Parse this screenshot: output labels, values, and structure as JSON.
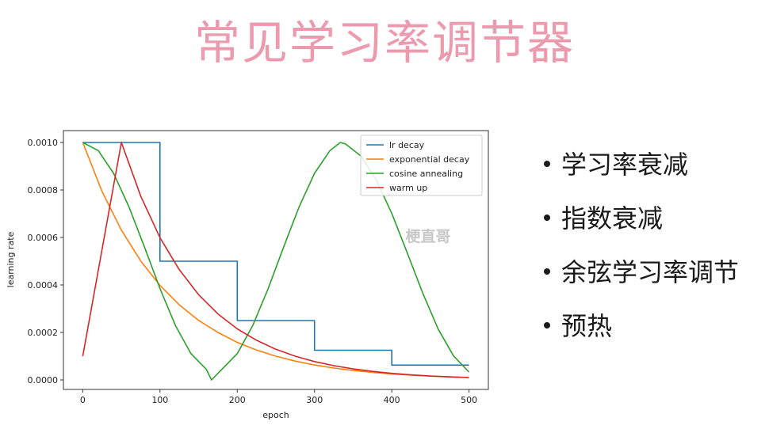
{
  "slide": {
    "title": "常见学习率调节器",
    "bullets": [
      "学习率衰减",
      "指数衰减",
      "余弦学习率调节",
      "预热"
    ]
  },
  "chart_data": {
    "type": "line",
    "xlabel": "epoch",
    "ylabel": "learning rate",
    "xlim": [
      -25,
      525
    ],
    "ylim": [
      -4e-05,
      0.00105
    ],
    "xticks": [
      0,
      100,
      200,
      300,
      400,
      500
    ],
    "xtick_labels": [
      "0",
      "100",
      "200",
      "300",
      "400",
      "500"
    ],
    "yticks": [
      0,
      0.0002,
      0.0004,
      0.0006,
      0.0008,
      0.001
    ],
    "ytick_labels": [
      "0.0000",
      "0.0002",
      "0.0004",
      "0.0006",
      "0.0008",
      "0.0010"
    ],
    "grid": false,
    "legend_position": "top-right",
    "watermark": "梗直哥",
    "series": [
      {
        "name": "lr decay",
        "color": "#1f77b4",
        "x": [
          0,
          100,
          100,
          200,
          200,
          300,
          300,
          400,
          400,
          500
        ],
        "y": [
          0.001,
          0.001,
          0.0005,
          0.0005,
          0.00025,
          0.00025,
          0.000125,
          0.000125,
          6.25e-05,
          6.25e-05
        ]
      },
      {
        "name": "exponential decay",
        "color": "#ff7f0e",
        "x": [
          0,
          25,
          50,
          75,
          100,
          125,
          150,
          175,
          200,
          225,
          250,
          275,
          300,
          325,
          350,
          375,
          400,
          425,
          450,
          475,
          500
        ],
        "y": [
          0.001,
          0.000794,
          0.000631,
          0.000501,
          0.000398,
          0.000316,
          0.000251,
          0.0002,
          0.000158,
          0.000126,
          0.0001,
          7.94e-05,
          6.31e-05,
          5.01e-05,
          3.98e-05,
          3.16e-05,
          2.51e-05,
          2e-05,
          1.58e-05,
          1.26e-05,
          1e-05
        ]
      },
      {
        "name": "cosine annealing",
        "color": "#2ca02c",
        "x": [
          0,
          20,
          40,
          60,
          80,
          100,
          120,
          140,
          160,
          166.7,
          180,
          200,
          220,
          240,
          260,
          280,
          300,
          320,
          333.3,
          340,
          360,
          380,
          400,
          420,
          440,
          460,
          480,
          500
        ],
        "y": [
          0.001,
          0.000966,
          0.00087,
          0.000728,
          0.000559,
          0.000385,
          0.000229,
          0.000111,
          4.44e-05,
          0.0,
          4.44e-05,
          0.000111,
          0.000229,
          0.000385,
          0.000559,
          0.000728,
          0.00087,
          0.000966,
          0.001,
          0.000994,
          0.000943,
          0.000842,
          0.000701,
          0.000535,
          0.000366,
          0.000214,
          0.000101,
          3.33e-05
        ]
      },
      {
        "name": "warm up",
        "color": "#d62728",
        "x": [
          0,
          50,
          75,
          100,
          125,
          150,
          175,
          200,
          225,
          250,
          275,
          300,
          325,
          350,
          375,
          400,
          425,
          450,
          475,
          500
        ],
        "y": [
          0.0001,
          0.001,
          0.000774,
          0.000599,
          0.000464,
          0.000359,
          0.000278,
          0.000215,
          0.000167,
          0.000129,
          0.0001,
          7.74e-05,
          5.99e-05,
          4.64e-05,
          3.59e-05,
          2.78e-05,
          2.15e-05,
          1.67e-05,
          1.29e-05,
          1e-05
        ]
      }
    ]
  }
}
